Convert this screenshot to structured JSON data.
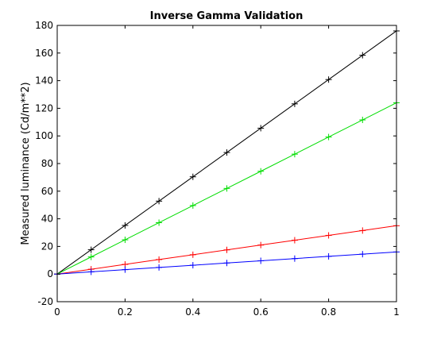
{
  "chart_data": {
    "type": "line",
    "title": "Inverse Gamma Validation",
    "xlabel": "",
    "ylabel": "Measured luminance (Cd/m**2)",
    "xlim": [
      0,
      1
    ],
    "ylim": [
      -20,
      180
    ],
    "xticks": [
      0,
      0.2,
      0.4,
      0.6,
      0.8,
      1
    ],
    "xtick_labels": [
      "0",
      "0.2",
      "0.4",
      "0.6",
      "0.8",
      "1"
    ],
    "yticks": [
      -20,
      0,
      20,
      40,
      60,
      80,
      100,
      120,
      140,
      160,
      180
    ],
    "ytick_labels": [
      "-20",
      "0",
      "20",
      "40",
      "60",
      "80",
      "100",
      "120",
      "140",
      "160",
      "180"
    ],
    "grid": false,
    "marker": "+",
    "x": [
      0,
      0.1,
      0.2,
      0.3,
      0.4,
      0.5,
      0.6,
      0.7,
      0.8,
      0.9,
      1.0
    ],
    "series": [
      {
        "color": "#000000",
        "values": [
          0,
          17.6,
          35.2,
          52.8,
          70.4,
          88.0,
          105.6,
          123.2,
          140.8,
          158.4,
          176.0
        ]
      },
      {
        "color": "#00dd00",
        "values": [
          0,
          12.4,
          24.8,
          37.2,
          49.6,
          62.0,
          74.4,
          86.8,
          99.2,
          111.6,
          124.0
        ]
      },
      {
        "color": "#ff0000",
        "values": [
          0,
          3.5,
          7.0,
          10.5,
          14.0,
          17.5,
          21.0,
          24.5,
          28.0,
          31.5,
          35.0
        ]
      },
      {
        "color": "#0000ff",
        "values": [
          0,
          1.6,
          3.2,
          4.8,
          6.4,
          8.0,
          9.6,
          11.2,
          12.8,
          14.4,
          16.0
        ]
      }
    ]
  }
}
